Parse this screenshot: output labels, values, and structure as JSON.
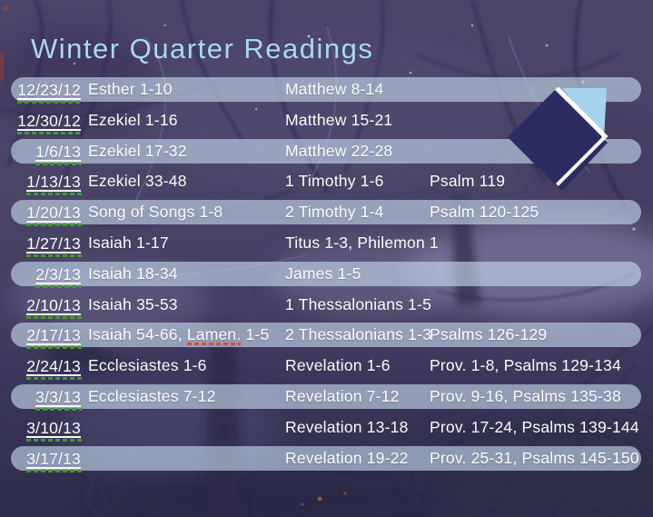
{
  "slide": {
    "title": "Winter Quarter Readings",
    "icon": "open-book",
    "colors": {
      "title_text": "#a9d9f3",
      "row_text": "#ffffff",
      "row_band": "#c3d7ea",
      "spellcheck_green": "#3f9b2e",
      "spellcheck_red": "#e14a2d",
      "icon_navy": "#2b2c62",
      "icon_page_blue": "#a7d3ef"
    }
  },
  "readings": {
    "rows": [
      {
        "date": "12/23/12",
        "ot": "Esther 1-10",
        "nt": "Matthew 8-14",
        "extra": "",
        "banded": true
      },
      {
        "date": "12/30/12",
        "ot": "Ezekiel 1-16",
        "nt": "Matthew 15-21",
        "extra": "",
        "banded": false
      },
      {
        "date": "1/6/13",
        "ot": "Ezekiel 17-32",
        "nt": "Matthew 22-28",
        "extra": "",
        "banded": true
      },
      {
        "date": "1/13/13",
        "ot": "Ezekiel 33-48",
        "nt": "1 Timothy 1-6",
        "extra": "Psalm 119",
        "banded": false
      },
      {
        "date": "1/20/13",
        "ot": "Song of Songs 1-8",
        "nt": "2 Timothy 1-4",
        "extra": "Psalm 120-125",
        "banded": true
      },
      {
        "date": "1/27/13",
        "ot": "Isaiah 1-17",
        "nt": "Titus 1-3, Philemon 1",
        "extra": "",
        "banded": false
      },
      {
        "date": "2/3/13",
        "ot": "Isaiah 18-34",
        "nt": "James 1-5",
        "extra": "",
        "banded": true
      },
      {
        "date": "2/10/13",
        "ot": "Isaiah 35-53",
        "nt": "1 Thessalonians 1-5",
        "extra": "",
        "banded": false
      },
      {
        "date": "2/17/13",
        "ot": "Isaiah 54-66, ",
        "ot_flagged": "Lamen.",
        "ot_suffix": " 1-5",
        "nt": "2 Thessalonians 1-3",
        "extra": "Psalms 126-129",
        "banded": true
      },
      {
        "date": "2/24/13",
        "ot": "Ecclesiastes 1-6",
        "nt": "Revelation 1-6",
        "extra": "Prov. 1-8, Psalms 129-134",
        "banded": false
      },
      {
        "date": "3/3/13",
        "ot": "Ecclesiastes 7-12",
        "nt": "Revelation 7-12",
        "extra": "Prov. 9-16, Psalms 135-38",
        "banded": true
      },
      {
        "date": "3/10/13",
        "ot": "",
        "nt": "Revelation 13-18",
        "extra": "Prov. 17-24, Psalms 139-144",
        "banded": false
      },
      {
        "date": "3/17/13",
        "ot": "",
        "nt": "Revelation 19-22",
        "extra": "Prov. 25-31, Psalms 145-150",
        "banded": true
      }
    ]
  }
}
